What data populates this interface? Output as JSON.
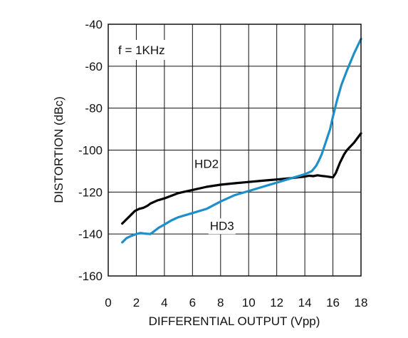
{
  "chart_data": {
    "type": "line",
    "xlabel": "DIFFERENTIAL OUTPUT (Vpp)",
    "ylabel": "DISTORTION (dBc)",
    "xlim": [
      0,
      18
    ],
    "ylim": [
      -160,
      -40
    ],
    "x_ticks": [
      "0",
      "2",
      "4",
      "6",
      "8",
      "10",
      "12",
      "14",
      "16",
      "18"
    ],
    "y_ticks": [
      "-40",
      "-60",
      "-80",
      "-100",
      "-120",
      "-140",
      "-160"
    ],
    "grid": true,
    "annotation": "f = 1KHz",
    "series": [
      {
        "name": "HD2",
        "color": "#000000",
        "x": [
          1,
          1.3,
          1.6,
          1.9,
          2.2,
          2.5,
          2.8,
          3,
          3.5,
          4,
          5,
          6,
          7,
          8,
          9,
          10,
          11,
          12,
          13,
          13.5,
          14,
          14.3,
          14.6,
          14.9,
          15.2,
          15.5,
          15.8,
          16,
          16.2,
          16.5,
          16.8,
          17,
          17.5,
          18
        ],
        "y": [
          -135,
          -133,
          -131,
          -129,
          -128,
          -127.5,
          -126.5,
          -125.5,
          -124,
          -123,
          -120.5,
          -119,
          -117.5,
          -116.5,
          -115.8,
          -115.2,
          -114.6,
          -114,
          -113.4,
          -113,
          -112.6,
          -112.2,
          -112.4,
          -112,
          -112.3,
          -112.5,
          -112.8,
          -113,
          -111,
          -106,
          -102,
          -100,
          -96.5,
          -92
        ]
      },
      {
        "name": "HD3",
        "color": "#1e8fc8",
        "x": [
          1,
          1.3,
          1.6,
          2,
          2.3,
          2.6,
          3,
          3.3,
          3.6,
          4,
          4.5,
          5,
          6,
          7,
          8,
          9,
          10,
          11,
          12,
          13,
          14,
          14.5,
          14.8,
          15,
          15.2,
          15.5,
          15.8,
          16,
          16.3,
          16.6,
          17,
          17.5,
          18
        ],
        "y": [
          -144,
          -142,
          -141,
          -140,
          -139.5,
          -139.8,
          -140,
          -138.5,
          -137,
          -135.5,
          -133.5,
          -132,
          -130,
          -128,
          -124.5,
          -121.5,
          -119.5,
          -117.5,
          -115.5,
          -113.5,
          -111.5,
          -110,
          -107.5,
          -105,
          -102,
          -96,
          -90,
          -84,
          -76,
          -69,
          -62,
          -54,
          -47
        ]
      }
    ]
  }
}
